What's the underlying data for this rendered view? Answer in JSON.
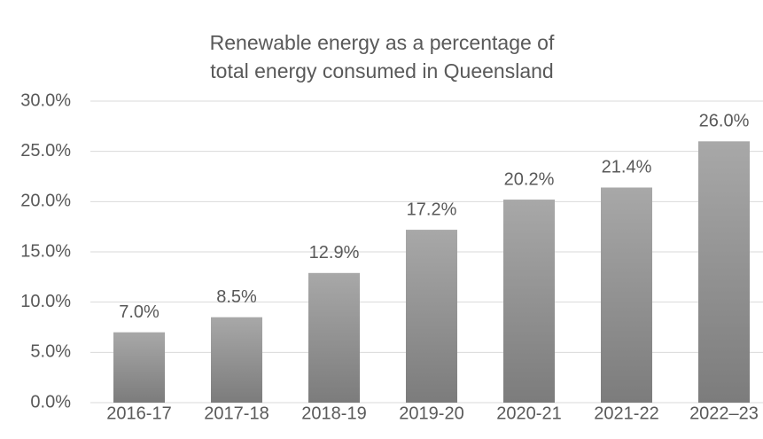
{
  "chart_data": {
    "type": "bar",
    "title": [
      "Renewable energy as a percentage of",
      "total energy consumed in Queensland"
    ],
    "categories": [
      "2016-17",
      "2017-18",
      "2018-19",
      "2019-20",
      "2020-21",
      "2021-22",
      "2022–23"
    ],
    "values": [
      7.0,
      8.5,
      12.9,
      17.2,
      20.2,
      21.4,
      26.0
    ],
    "value_labels": [
      "7.0%",
      "8.5%",
      "12.9%",
      "17.2%",
      "20.2%",
      "21.4%",
      "26.0%"
    ],
    "color": [
      "#a8a8a8",
      "#7c7c7c"
    ],
    "ylim": [
      0,
      30
    ],
    "yticks": [
      {
        "value": 0,
        "label": "0.0%"
      },
      {
        "value": 5,
        "label": "5.0%"
      },
      {
        "value": 10,
        "label": "10.0%"
      },
      {
        "value": 15,
        "label": "15.0%"
      },
      {
        "value": 20,
        "label": "20.0%"
      },
      {
        "value": 25,
        "label": "25.0%"
      },
      {
        "value": 30,
        "label": "30.0%"
      }
    ],
    "grid": true
  }
}
